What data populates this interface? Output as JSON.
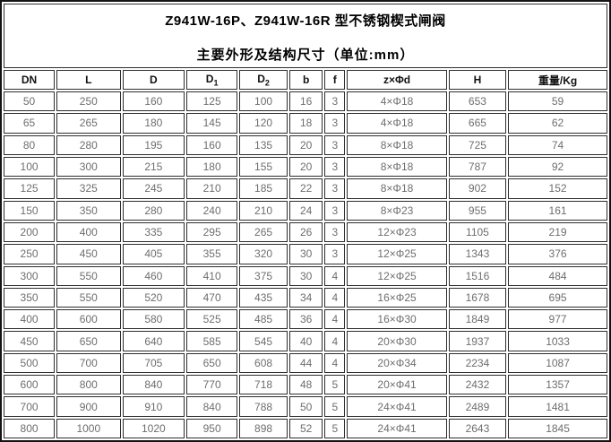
{
  "header": {
    "title_line1": "Z941W-16P、Z941W-16R 型不锈钢楔式闸阀",
    "title_line2": "主要外形及结构尺寸（单位:mm）"
  },
  "colors": {
    "title_background": "#d3d3d3",
    "outer_border": "#141414",
    "cell_border": "#2e2e2e",
    "header_text": "#111111",
    "data_text": "#6e6e6e"
  },
  "table": {
    "headers": [
      {
        "label": "DN"
      },
      {
        "label": "L"
      },
      {
        "label": "D"
      },
      {
        "label": "D",
        "sub": "1"
      },
      {
        "label": "D",
        "sub": "2"
      },
      {
        "label": "b"
      },
      {
        "label": "f"
      },
      {
        "label": "z×Φd"
      },
      {
        "label": "H"
      },
      {
        "label": "重量/Kg"
      }
    ],
    "rows": [
      [
        "50",
        "250",
        "160",
        "125",
        "100",
        "16",
        "3",
        "4×Φ18",
        "653",
        "59"
      ],
      [
        "65",
        "265",
        "180",
        "145",
        "120",
        "18",
        "3",
        "4×Φ18",
        "665",
        "62"
      ],
      [
        "80",
        "280",
        "195",
        "160",
        "135",
        "20",
        "3",
        "8×Φ18",
        "725",
        "74"
      ],
      [
        "100",
        "300",
        "215",
        "180",
        "155",
        "20",
        "3",
        "8×Φ18",
        "787",
        "92"
      ],
      [
        "125",
        "325",
        "245",
        "210",
        "185",
        "22",
        "3",
        "8×Φ18",
        "902",
        "152"
      ],
      [
        "150",
        "350",
        "280",
        "240",
        "210",
        "24",
        "3",
        "8×Φ23",
        "955",
        "161"
      ],
      [
        "200",
        "400",
        "335",
        "295",
        "265",
        "26",
        "3",
        "12×Φ23",
        "1105",
        "219"
      ],
      [
        "250",
        "450",
        "405",
        "355",
        "320",
        "30",
        "3",
        "12×Φ25",
        "1343",
        "376"
      ],
      [
        "300",
        "550",
        "460",
        "410",
        "375",
        "30",
        "4",
        "12×Φ25",
        "1516",
        "484"
      ],
      [
        "350",
        "550",
        "520",
        "470",
        "435",
        "34",
        "4",
        "16×Φ25",
        "1678",
        "695"
      ],
      [
        "400",
        "600",
        "580",
        "525",
        "485",
        "36",
        "4",
        "16×Φ30",
        "1849",
        "977"
      ],
      [
        "450",
        "650",
        "640",
        "585",
        "545",
        "40",
        "4",
        "20×Φ30",
        "1937",
        "1033"
      ],
      [
        "500",
        "700",
        "705",
        "650",
        "608",
        "44",
        "4",
        "20×Φ34",
        "2234",
        "1087"
      ],
      [
        "600",
        "800",
        "840",
        "770",
        "718",
        "48",
        "5",
        "20×Φ41",
        "2432",
        "1357"
      ],
      [
        "700",
        "900",
        "910",
        "840",
        "788",
        "50",
        "5",
        "24×Φ41",
        "2489",
        "1481"
      ],
      [
        "800",
        "1000",
        "1020",
        "950",
        "898",
        "52",
        "5",
        "24×Φ41",
        "2643",
        "1845"
      ]
    ]
  }
}
